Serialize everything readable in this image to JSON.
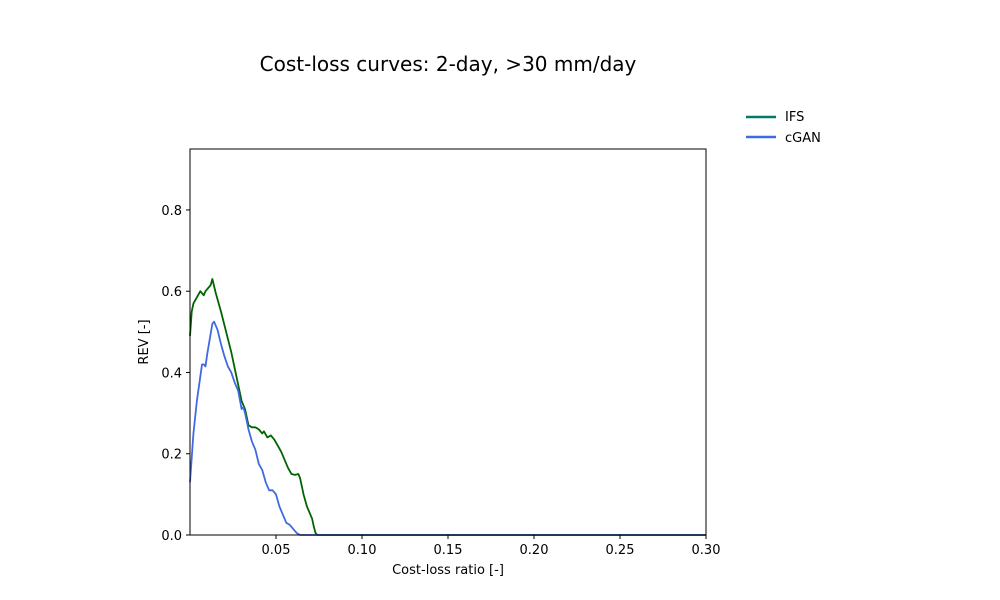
{
  "chart_data": {
    "type": "line",
    "title": "Cost-loss curves: 2-day, >30 mm/day",
    "xlabel": "Cost-loss ratio [-]",
    "ylabel": "REV [-]",
    "xlim": [
      0.0,
      0.3
    ],
    "ylim": [
      0.0,
      0.95
    ],
    "xticks": [
      0.05,
      0.1,
      0.15,
      0.2,
      0.25,
      0.3
    ],
    "xtick_labels": [
      "0.05",
      "0.10",
      "0.15",
      "0.20",
      "0.25",
      "0.30"
    ],
    "yticks": [
      0.0,
      0.2,
      0.4,
      0.6,
      0.8
    ],
    "ytick_labels": [
      "0.0",
      "0.2",
      "0.4",
      "0.6",
      "0.8"
    ],
    "grid": false,
    "legend": {
      "placement": "upper-right-outside",
      "legend_line_color": "#007a6a"
    },
    "series": [
      {
        "name": "IFS",
        "color": "#006400",
        "x": [
          0.0,
          0.001,
          0.002,
          0.004,
          0.006,
          0.008,
          0.009,
          0.01,
          0.012,
          0.013,
          0.015,
          0.018,
          0.021,
          0.024,
          0.027,
          0.03,
          0.032,
          0.034,
          0.036,
          0.038,
          0.04,
          0.042,
          0.043,
          0.045,
          0.047,
          0.049,
          0.051,
          0.053,
          0.055,
          0.057,
          0.059,
          0.061,
          0.063,
          0.064,
          0.066,
          0.068,
          0.07,
          0.071,
          0.072,
          0.073,
          0.074,
          0.08,
          0.1,
          0.15,
          0.2,
          0.25,
          0.3
        ],
        "y": [
          0.49,
          0.55,
          0.57,
          0.585,
          0.6,
          0.59,
          0.6,
          0.605,
          0.615,
          0.63,
          0.595,
          0.55,
          0.5,
          0.45,
          0.39,
          0.33,
          0.31,
          0.27,
          0.265,
          0.265,
          0.26,
          0.25,
          0.255,
          0.24,
          0.245,
          0.235,
          0.22,
          0.205,
          0.185,
          0.165,
          0.15,
          0.148,
          0.15,
          0.14,
          0.1,
          0.07,
          0.05,
          0.04,
          0.02,
          0.005,
          0.0,
          0.0,
          0.0,
          0.0,
          0.0,
          0.0,
          0.0
        ]
      },
      {
        "name": "cGAN",
        "color": "#4169e1",
        "x": [
          0.0,
          0.002,
          0.004,
          0.006,
          0.007,
          0.008,
          0.009,
          0.01,
          0.012,
          0.013,
          0.014,
          0.016,
          0.018,
          0.02,
          0.022,
          0.024,
          0.026,
          0.028,
          0.03,
          0.031,
          0.032,
          0.034,
          0.036,
          0.038,
          0.04,
          0.042,
          0.044,
          0.046,
          0.048,
          0.05,
          0.052,
          0.054,
          0.056,
          0.058,
          0.06,
          0.062,
          0.064,
          0.066,
          0.068,
          0.07,
          0.072,
          0.074,
          0.08,
          0.1,
          0.15,
          0.2,
          0.25,
          0.3
        ],
        "y": [
          0.13,
          0.25,
          0.33,
          0.39,
          0.42,
          0.42,
          0.415,
          0.445,
          0.495,
          0.52,
          0.525,
          0.505,
          0.47,
          0.44,
          0.415,
          0.4,
          0.375,
          0.355,
          0.31,
          0.315,
          0.3,
          0.26,
          0.23,
          0.21,
          0.175,
          0.16,
          0.13,
          0.11,
          0.11,
          0.1,
          0.07,
          0.05,
          0.03,
          0.025,
          0.015,
          0.005,
          0.0,
          0.0,
          0.0,
          0.0,
          0.0,
          0.0,
          0.0,
          0.0,
          0.0,
          0.0,
          0.0,
          0.0
        ]
      }
    ]
  }
}
